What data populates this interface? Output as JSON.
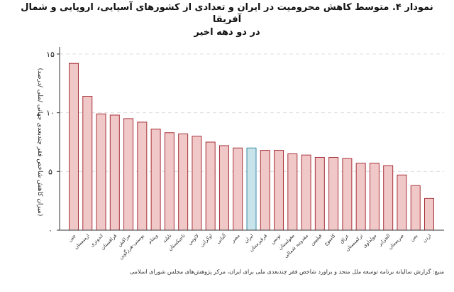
{
  "chart_data": {
    "type": "bar",
    "title": "نمودار ۴. متوسط کاهش محرومیت در ایران و تعدادی از کشورهای آسیایی، اروپایی و شمال آفریقا",
    "subtitle": "در دو دهه اخیر",
    "ylabel": "(میزان کاهش شاخص فقر چندبعدی جهانی /ملی /درصد)",
    "xlabel": "",
    "ylim": [
      0,
      15.5
    ],
    "yticks": [
      0,
      5,
      10,
      15
    ],
    "ytick_labels": [
      "۰",
      "۵",
      "۱۰",
      "۱۵"
    ],
    "grid": "horizontal dashed",
    "categories": [
      "چین",
      "ارمنستان",
      "اندونزی",
      "قزاقستان",
      "مراکش",
      "بوسنی-هرزگوین",
      "ویتنام",
      "تایلند",
      "تاجیکستان",
      "لائوس",
      "اوکراین",
      "آلبانی",
      "مصر",
      "ایران",
      "قرقیزستان",
      "تونس",
      "مغولستان",
      "مقدونیه شمالی",
      "فیلیپین",
      "کامبوج",
      "عراق",
      "ترکمنستان",
      "مولداوی",
      "الجزایر",
      "صربستان",
      "یمن",
      "اردن"
    ],
    "values": [
      14.2,
      11.4,
      9.9,
      9.8,
      9.5,
      9.2,
      8.6,
      8.3,
      8.2,
      8.0,
      7.5,
      7.2,
      7.0,
      7.0,
      6.8,
      6.8,
      6.5,
      6.4,
      6.2,
      6.2,
      6.1,
      5.7,
      5.7,
      5.5,
      4.7,
      3.8,
      2.7
    ],
    "highlight": "ایران",
    "colors": {
      "bar_fill": "#f0c8c8",
      "bar_stroke": "#a8323a",
      "highlight_fill": "#c9e3ea",
      "highlight_stroke": "#3a8aa8"
    },
    "source": "منبع: گزارش سالیانه برنامه توسعه ملل متحد و براورد شاخص فقر چندبعدی ملی برای ایران، مرکز پژوهش‌های مجلس شورای اسلامی"
  }
}
